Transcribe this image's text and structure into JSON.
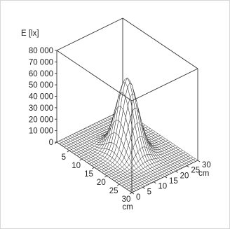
{
  "chart_data": {
    "type": "surface3d",
    "title": "",
    "zlabel": "E [lx]",
    "xlabel": "cm",
    "ylabel": "cm",
    "x_ticks": [
      "0",
      "5",
      "10",
      "15",
      "20",
      "25",
      "30"
    ],
    "y_ticks": [
      "0",
      "5",
      "10",
      "15",
      "20",
      "25",
      "30"
    ],
    "z_ticks": [
      "0",
      "10 000",
      "20 000",
      "30 000",
      "40 000",
      "50 000",
      "60 000",
      "70 000",
      "80 000"
    ],
    "xlim": [
      0,
      30
    ],
    "ylim": [
      0,
      30
    ],
    "zlim": [
      0,
      80000
    ],
    "surface": {
      "shape": "gaussian",
      "peak_value": 64000,
      "peak_x": 15,
      "peak_y": 15,
      "sigma": 3.3,
      "grid_step": 1
    },
    "colors": {
      "mesh": "#222222",
      "face": "#ffffff",
      "frame": "#333333"
    }
  }
}
